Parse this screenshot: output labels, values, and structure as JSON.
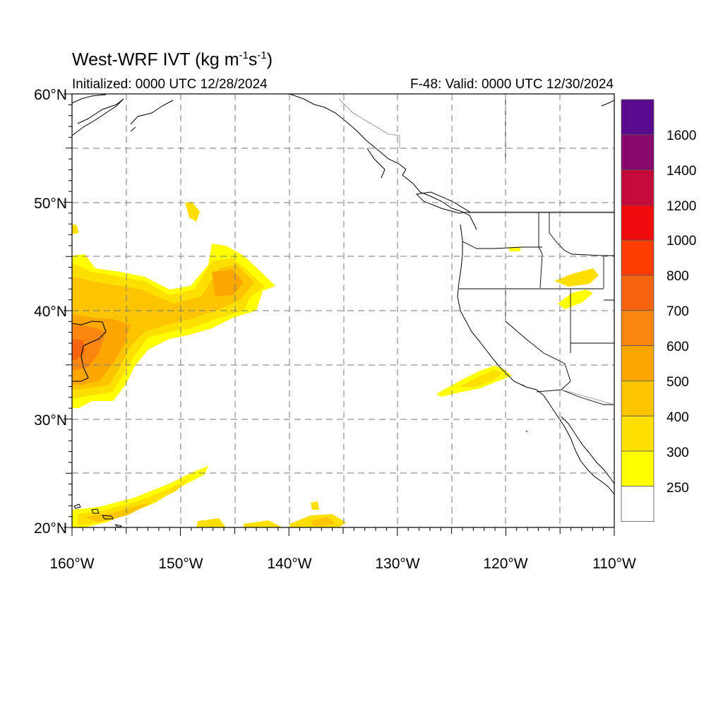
{
  "header": {
    "title_main": "West-WRF IVT (kg m",
    "title_exp1": "-1",
    "title_mid": "s",
    "title_exp2": "-1",
    "title_end": ")",
    "initialized": "Initialized: 0000 UTC 12/28/2024",
    "valid": "F-48: Valid: 0000 UTC 12/30/2024"
  },
  "axes": {
    "lat_labels": [
      "60°N",
      "50°N",
      "40°N",
      "30°N",
      "20°N"
    ],
    "lon_labels": [
      "160°W",
      "150°W",
      "140°W",
      "130°W",
      "120°W",
      "110°W"
    ],
    "lat_range": [
      20,
      60
    ],
    "lon_range": [
      -160,
      -110
    ]
  },
  "colorbar": {
    "labels": [
      "1600",
      "1400",
      "1200",
      "1000",
      "800",
      "700",
      "600",
      "500",
      "400",
      "300",
      "250"
    ],
    "colors": [
      "#5a0a8c",
      "#86066e",
      "#c20a3c",
      "#ee0a0a",
      "#fd3d00",
      "#f66410",
      "#f9860f",
      "#fea600",
      "#fdc400",
      "#fee000",
      "#ffff00",
      "#ffffff"
    ]
  }
}
